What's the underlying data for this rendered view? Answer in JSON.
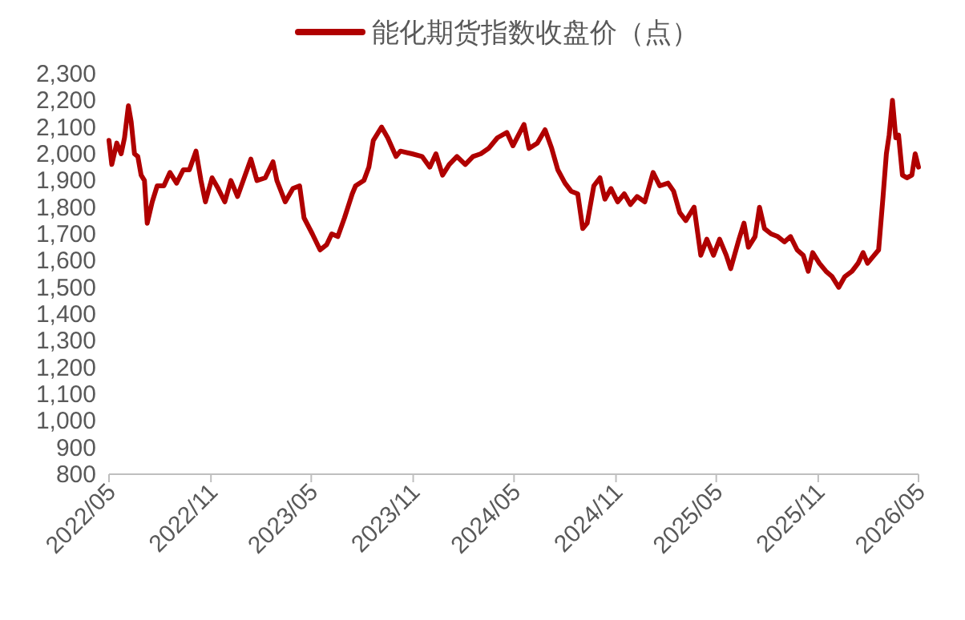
{
  "chart_data": {
    "type": "line",
    "legend": "top",
    "grid": false,
    "line_style": "solid",
    "marker": "none",
    "xlim": [
      "2022-05",
      "2026-05"
    ],
    "xticks": [
      {
        "value": "2022-05",
        "label": "2022/05"
      },
      {
        "value": "2022-11",
        "label": "2022/11"
      },
      {
        "value": "2023-05",
        "label": "2023/05"
      },
      {
        "value": "2023-11",
        "label": "2023/11"
      },
      {
        "value": "2024-05",
        "label": "2024/05"
      },
      {
        "value": "2024-11",
        "label": "2024/11"
      },
      {
        "value": "2025-05",
        "label": "2025/05"
      },
      {
        "value": "2025-11",
        "label": "2025/11"
      },
      {
        "value": "2026-05",
        "label": "2026/05"
      }
    ],
    "ylim": [
      800,
      2300
    ],
    "yticks": [
      800,
      900,
      {
        "value": 1000,
        "label": "1,000"
      },
      {
        "value": 1100,
        "label": "1,100"
      },
      {
        "value": 1200,
        "label": "1,200"
      },
      {
        "value": 1300,
        "label": "1,300"
      },
      {
        "value": 1400,
        "label": "1,400"
      },
      {
        "value": 1500,
        "label": "1,500"
      },
      {
        "value": 1600,
        "label": "1,600"
      },
      {
        "value": 1700,
        "label": "1,700"
      },
      {
        "value": 1800,
        "label": "1,800"
      },
      {
        "value": 1900,
        "label": "1,900"
      },
      {
        "value": 2000,
        "label": "2,000"
      },
      {
        "value": 2100,
        "label": "2,100"
      },
      {
        "value": 2200,
        "label": "2,200"
      },
      {
        "value": 2300,
        "label": "2,300"
      }
    ],
    "x": [
      "2022-05-01",
      "2022-05-06",
      "2022-05-15",
      "2022-05-23",
      "2022-05-29",
      "2022-06-05",
      "2022-06-10",
      "2022-06-16",
      "2022-06-22",
      "2022-06-28",
      "2022-07-04",
      "2022-07-09",
      "2022-07-18",
      "2022-07-27",
      "2022-08-08",
      "2022-08-19",
      "2022-08-31",
      "2022-09-12",
      "2022-09-23",
      "2022-10-05",
      "2022-10-14",
      "2022-10-22",
      "2022-11-03",
      "2022-11-14",
      "2022-11-26",
      "2022-12-07",
      "2022-12-19",
      "2022-12-31",
      "2023-01-12",
      "2023-01-23",
      "2023-02-07",
      "2023-02-21",
      "2023-02-28",
      "2023-03-15",
      "2023-03-29",
      "2023-04-10",
      "2023-04-18",
      "2023-05-03",
      "2023-05-17",
      "2023-05-29",
      "2023-06-07",
      "2023-06-18",
      "2023-06-30",
      "2023-07-14",
      "2023-07-20",
      "2023-08-04",
      "2023-08-13",
      "2023-08-21",
      "2023-09-05",
      "2023-09-16",
      "2023-10-01",
      "2023-10-09",
      "2023-10-30",
      "2023-11-17",
      "2023-12-01",
      "2023-12-12",
      "2023-12-24",
      "2024-01-05",
      "2024-01-19",
      "2024-02-03",
      "2024-02-17",
      "2024-03-02",
      "2024-03-16",
      "2024-04-01",
      "2024-04-18",
      "2024-04-29",
      "2024-05-19",
      "2024-05-28",
      "2024-06-12",
      "2024-06-26",
      "2024-07-08",
      "2024-07-19",
      "2024-08-01",
      "2024-08-12",
      "2024-08-24",
      "2024-09-02",
      "2024-09-10",
      "2024-09-22",
      "2024-10-03",
      "2024-10-12",
      "2024-10-23",
      "2024-11-04",
      "2024-11-16",
      "2024-11-27",
      "2024-12-09",
      "2024-12-23",
      "2025-01-07",
      "2025-01-19",
      "2025-02-03",
      "2025-02-13",
      "2025-02-24",
      "2025-03-07",
      "2025-03-22",
      "2025-04-03",
      "2025-04-14",
      "2025-04-26",
      "2025-05-07",
      "2025-05-19",
      "2025-05-27",
      "2025-06-11",
      "2025-06-20",
      "2025-06-28",
      "2025-07-10",
      "2025-07-18",
      "2025-07-27",
      "2025-08-08",
      "2025-08-20",
      "2025-09-01",
      "2025-09-12",
      "2025-09-24",
      "2025-10-05",
      "2025-10-14",
      "2025-10-22",
      "2025-11-03",
      "2025-11-15",
      "2025-11-26",
      "2025-12-08",
      "2025-12-19",
      "2026-01-01",
      "2026-01-12",
      "2026-01-21",
      "2026-01-29",
      "2026-02-10",
      "2026-02-18",
      "2026-02-26",
      "2026-03-04",
      "2026-03-09",
      "2026-03-15",
      "2026-03-21",
      "2026-03-26",
      "2026-04-02",
      "2026-04-10",
      "2026-04-19",
      "2026-04-25",
      "2026-05-01"
    ],
    "series": [
      {
        "name": "能化期货指数收盘价（点）",
        "color": "#b00000",
        "values": [
          2050,
          1960,
          2040,
          2000,
          2060,
          2180,
          2120,
          2000,
          1990,
          1920,
          1900,
          1740,
          1820,
          1880,
          1880,
          1930,
          1890,
          1940,
          1940,
          2010,
          1900,
          1820,
          1910,
          1870,
          1820,
          1900,
          1840,
          1910,
          1980,
          1900,
          1910,
          1970,
          1900,
          1820,
          1870,
          1880,
          1760,
          1700,
          1640,
          1660,
          1700,
          1690,
          1760,
          1850,
          1880,
          1900,
          1950,
          2050,
          2100,
          2060,
          1990,
          2010,
          2000,
          1990,
          1950,
          2000,
          1920,
          1960,
          1990,
          1960,
          1990,
          2000,
          2020,
          2060,
          2080,
          2030,
          2110,
          2020,
          2040,
          2090,
          2020,
          1940,
          1890,
          1860,
          1850,
          1720,
          1740,
          1880,
          1910,
          1830,
          1870,
          1820,
          1850,
          1810,
          1840,
          1820,
          1930,
          1880,
          1890,
          1860,
          1780,
          1750,
          1800,
          1620,
          1680,
          1620,
          1680,
          1620,
          1570,
          1680,
          1740,
          1650,
          1690,
          1800,
          1720,
          1700,
          1690,
          1670,
          1690,
          1640,
          1620,
          1560,
          1630,
          1590,
          1560,
          1540,
          1500,
          1540,
          1560,
          1590,
          1630,
          1590,
          1620,
          1640,
          1840,
          2000,
          2070,
          2200,
          2060,
          2070,
          1920,
          1910,
          1920,
          2000,
          1950
        ]
      }
    ]
  }
}
